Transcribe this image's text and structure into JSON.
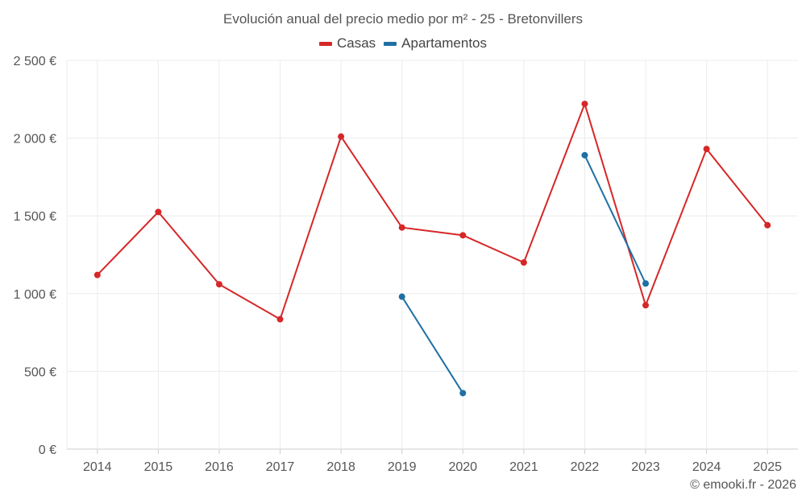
{
  "chart_data": {
    "type": "line",
    "title": "Evolución anual del precio medio por m² - 25 - Bretonvillers",
    "categories": [
      "2014",
      "2015",
      "2016",
      "2017",
      "2018",
      "2019",
      "2020",
      "2021",
      "2022",
      "2023",
      "2024",
      "2025"
    ],
    "series": [
      {
        "name": "Casas",
        "color": "#d62728",
        "values": [
          1120,
          1525,
          1060,
          835,
          2010,
          1425,
          1375,
          1200,
          2220,
          925,
          1930,
          1440
        ]
      },
      {
        "name": "Apartamentos",
        "color": "#1f6fa4",
        "values": [
          null,
          null,
          null,
          null,
          null,
          980,
          360,
          null,
          1890,
          1065,
          null,
          null
        ]
      }
    ],
    "ylim": [
      0,
      2500
    ],
    "yticks": [
      0,
      500,
      1000,
      1500,
      2000,
      2500
    ],
    "ytick_labels": [
      "0 €",
      "500 €",
      "1 000 €",
      "1 500 €",
      "2 000 €",
      "2 500 €"
    ],
    "xlabel": "",
    "ylabel": "",
    "grid": true,
    "legend_position": "top-center"
  },
  "credit": "© emooki.fr - 2026"
}
